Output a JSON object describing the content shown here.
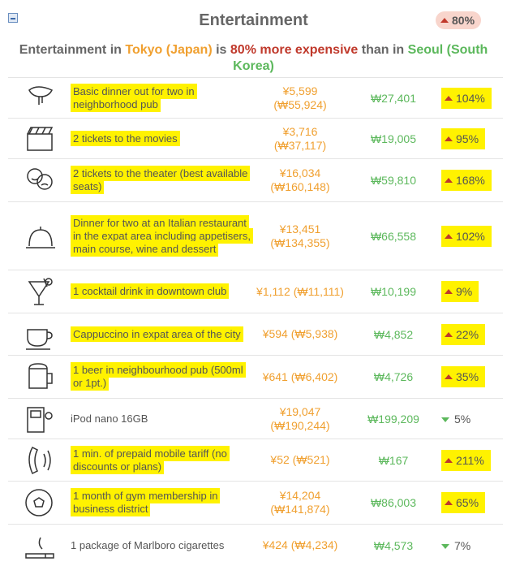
{
  "header": {
    "title": "Entertainment",
    "badge": "80%"
  },
  "summary": {
    "parts": [
      "Entertainment in ",
      "Tokyo (Japan)",
      " is ",
      "80% more expensive",
      " than in ",
      "Seoul (South Korea)"
    ]
  },
  "rows": [
    {
      "item": "Basic dinner out for two in neighborhood pub",
      "tokyo": "¥5,599",
      "tokyo_converted": "(₩55,924)",
      "seoul": "₩27,401",
      "difference": "104%"
    },
    {
      "item": "2 tickets to the movies",
      "tokyo": "¥3,716",
      "tokyo_converted": "(₩37,117)",
      "seoul": "₩19,005",
      "difference": "95%"
    },
    {
      "item": "2 tickets to the theater (best available seats)",
      "tokyo": "¥16,034",
      "tokyo_converted": "(₩160,148)",
      "seoul": "₩59,810",
      "difference": "168%"
    },
    {
      "item": "Dinner for two at an Italian restaurant in the expat area including appetisers, main course, wine and dessert",
      "tokyo": "¥13,451",
      "tokyo_converted": "(₩134,355)",
      "seoul": "₩66,558",
      "difference": "102%"
    },
    {
      "item": "1 cocktail drink in downtown club",
      "tokyo": "¥1,112",
      "tokyo_converted": "(₩11,111)",
      "seoul": "₩10,199",
      "difference": "9%"
    },
    {
      "item": "Cappuccino in expat area of the city",
      "tokyo": "¥594",
      "tokyo_converted": "(₩5,938)",
      "seoul": "₩4,852",
      "difference": "22%"
    },
    {
      "item": "1 beer in neighbourhood pub (500ml or 1pt.)",
      "tokyo": "¥641",
      "tokyo_converted": "(₩6,402)",
      "seoul": "₩4,726",
      "difference": "35%"
    },
    {
      "item": "iPod nano 16GB",
      "tokyo": "¥19,047",
      "tokyo_converted": "(₩190,244)",
      "seoul": "₩199,209",
      "difference": "5%"
    },
    {
      "item": "1 min. of prepaid mobile tariff (no discounts or plans)",
      "tokyo": "¥52",
      "tokyo_converted": "(₩521)",
      "seoul": "₩167",
      "difference": "211%"
    },
    {
      "item": "1 month of gym membership in business district",
      "tokyo": "¥14,204",
      "tokyo_converted": "(₩141,874)",
      "seoul": "₩86,003",
      "difference": "65%"
    },
    {
      "item": "1 package of Marlboro cigarettes",
      "tokyo": "¥424",
      "tokyo_converted": "(₩4,234)",
      "seoul": "₩4,573",
      "difference": "7%"
    }
  ]
}
